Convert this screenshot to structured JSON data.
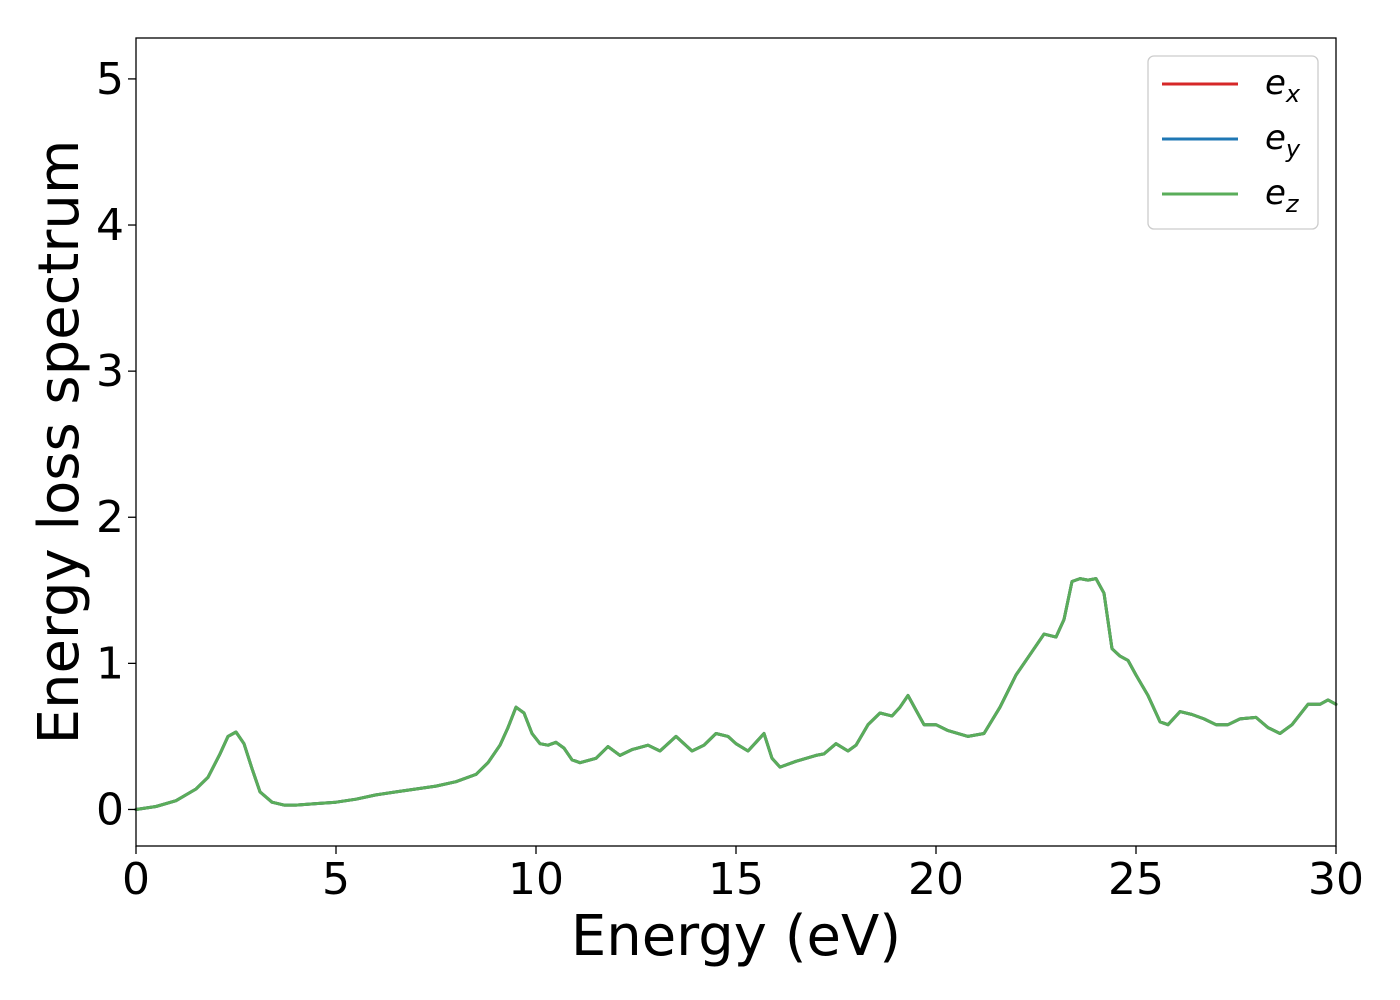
{
  "chart_data": {
    "type": "line",
    "title": "",
    "xlabel": "Energy (eV)",
    "ylabel": "Energy loss spectrum",
    "xlim": [
      0,
      30
    ],
    "ylim": [
      -0.25,
      5.28
    ],
    "xticks": [
      0,
      5,
      10,
      15,
      20,
      25,
      30
    ],
    "xtick_labels": [
      "0",
      "5",
      "10",
      "15",
      "20",
      "25",
      "30"
    ],
    "yticks": [
      0,
      1,
      2,
      3,
      4,
      5
    ],
    "ytick_labels": [
      "0",
      "1",
      "2",
      "3",
      "4",
      "5"
    ],
    "grid": false,
    "legend_position": "top-right",
    "x": [
      0.0,
      0.5,
      1.0,
      1.5,
      1.8,
      2.1,
      2.3,
      2.5,
      2.7,
      2.9,
      3.1,
      3.4,
      3.7,
      4.0,
      4.5,
      5.0,
      5.5,
      6.0,
      6.5,
      7.0,
      7.5,
      8.0,
      8.5,
      8.8,
      9.1,
      9.3,
      9.5,
      9.7,
      9.9,
      10.1,
      10.3,
      10.5,
      10.7,
      10.9,
      11.1,
      11.5,
      11.8,
      12.1,
      12.4,
      12.8,
      13.1,
      13.5,
      13.9,
      14.2,
      14.5,
      14.8,
      15.0,
      15.3,
      15.5,
      15.7,
      15.9,
      16.1,
      16.5,
      17.0,
      17.2,
      17.5,
      17.8,
      18.0,
      18.3,
      18.6,
      18.9,
      19.1,
      19.3,
      19.5,
      19.7,
      20.0,
      20.3,
      20.8,
      21.2,
      21.6,
      22.0,
      22.4,
      22.7,
      23.0,
      23.2,
      23.4,
      23.6,
      23.8,
      24.0,
      24.2,
      24.4,
      24.6,
      24.8,
      25.0,
      25.3,
      25.6,
      25.8,
      26.1,
      26.4,
      26.7,
      27.0,
      27.3,
      27.6,
      28.0,
      28.3,
      28.6,
      28.9,
      29.3,
      29.6,
      29.8,
      30.0
    ],
    "series": [
      {
        "name": "e_x",
        "label_base": "e",
        "label_sub": "x",
        "color": "#d62728",
        "values": [
          0.0,
          0.02,
          0.06,
          0.14,
          0.22,
          0.38,
          0.5,
          0.53,
          0.45,
          0.28,
          0.12,
          0.05,
          0.03,
          0.03,
          0.04,
          0.05,
          0.07,
          0.1,
          0.12,
          0.14,
          0.16,
          0.19,
          0.24,
          0.32,
          0.44,
          0.56,
          0.7,
          0.66,
          0.52,
          0.45,
          0.44,
          0.46,
          0.42,
          0.34,
          0.32,
          0.35,
          0.43,
          0.37,
          0.41,
          0.44,
          0.4,
          0.5,
          0.4,
          0.44,
          0.52,
          0.5,
          0.45,
          0.4,
          0.46,
          0.52,
          0.35,
          0.29,
          0.33,
          0.37,
          0.38,
          0.45,
          0.4,
          0.44,
          0.58,
          0.66,
          0.64,
          0.7,
          0.78,
          0.68,
          0.58,
          0.58,
          0.54,
          0.5,
          0.52,
          0.7,
          0.92,
          1.08,
          1.2,
          1.18,
          1.3,
          1.56,
          1.58,
          1.57,
          1.58,
          1.48,
          1.1,
          1.05,
          1.02,
          0.92,
          0.78,
          0.6,
          0.58,
          0.67,
          0.65,
          0.62,
          0.58,
          0.58,
          0.62,
          0.63,
          0.56,
          0.52,
          0.58,
          0.72,
          0.72,
          0.75,
          0.72
        ]
      },
      {
        "name": "e_y",
        "label_base": "e",
        "label_sub": "y",
        "color": "#1f77b4",
        "values": [
          0.0,
          0.02,
          0.06,
          0.14,
          0.22,
          0.38,
          0.5,
          0.53,
          0.45,
          0.28,
          0.12,
          0.05,
          0.03,
          0.03,
          0.04,
          0.05,
          0.07,
          0.1,
          0.12,
          0.14,
          0.16,
          0.19,
          0.24,
          0.32,
          0.44,
          0.56,
          0.7,
          0.66,
          0.52,
          0.45,
          0.44,
          0.46,
          0.42,
          0.34,
          0.32,
          0.35,
          0.43,
          0.37,
          0.41,
          0.44,
          0.4,
          0.5,
          0.4,
          0.44,
          0.52,
          0.5,
          0.45,
          0.4,
          0.46,
          0.52,
          0.35,
          0.29,
          0.33,
          0.37,
          0.38,
          0.45,
          0.4,
          0.44,
          0.58,
          0.66,
          0.64,
          0.7,
          0.78,
          0.68,
          0.58,
          0.58,
          0.54,
          0.5,
          0.52,
          0.7,
          0.92,
          1.08,
          1.2,
          1.18,
          1.3,
          1.56,
          1.58,
          1.57,
          1.58,
          1.48,
          1.1,
          1.05,
          1.02,
          0.92,
          0.78,
          0.6,
          0.58,
          0.67,
          0.65,
          0.62,
          0.58,
          0.58,
          0.62,
          0.63,
          0.56,
          0.52,
          0.58,
          0.72,
          0.72,
          0.75,
          0.72
        ]
      },
      {
        "name": "e_z",
        "label_base": "e",
        "label_sub": "z",
        "color": "#5aad5a",
        "values": [
          0.0,
          0.02,
          0.06,
          0.14,
          0.22,
          0.38,
          0.5,
          0.53,
          0.45,
          0.28,
          0.12,
          0.05,
          0.03,
          0.03,
          0.04,
          0.05,
          0.07,
          0.1,
          0.12,
          0.14,
          0.16,
          0.19,
          0.24,
          0.32,
          0.44,
          0.56,
          0.7,
          0.66,
          0.52,
          0.45,
          0.44,
          0.46,
          0.42,
          0.34,
          0.32,
          0.35,
          0.43,
          0.37,
          0.41,
          0.44,
          0.4,
          0.5,
          0.4,
          0.44,
          0.52,
          0.5,
          0.45,
          0.4,
          0.46,
          0.52,
          0.35,
          0.29,
          0.33,
          0.37,
          0.38,
          0.45,
          0.4,
          0.44,
          0.58,
          0.66,
          0.64,
          0.7,
          0.78,
          0.68,
          0.58,
          0.58,
          0.54,
          0.5,
          0.52,
          0.7,
          0.92,
          1.08,
          1.2,
          1.18,
          1.3,
          1.56,
          1.58,
          1.57,
          1.58,
          1.48,
          1.1,
          1.05,
          1.02,
          0.92,
          0.78,
          0.6,
          0.58,
          0.67,
          0.65,
          0.62,
          0.58,
          0.58,
          0.62,
          0.63,
          0.56,
          0.52,
          0.58,
          0.72,
          0.72,
          0.75,
          0.72
        ]
      }
    ]
  }
}
